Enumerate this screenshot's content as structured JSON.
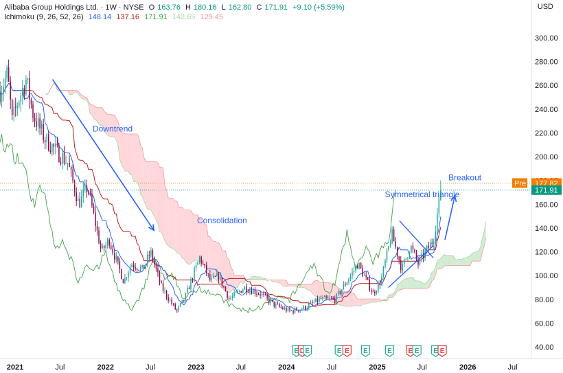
{
  "header": {
    "symbol_line": "Alibaba Group Holdings Ltd. · 1W · NYSE",
    "o_label": "O",
    "o": "163.76",
    "h_label": "H",
    "h": "180.16",
    "l_label": "L",
    "l": "162.80",
    "c_label": "C",
    "c": "171.91",
    "change": "+9.10 (+5.59%)",
    "indicator": "Ichimoku (9, 26, 52, 26)",
    "ichimoku_values": [
      "148.14",
      "137.16",
      "171.91",
      "142.65",
      "129.45"
    ],
    "ichimoku_colors": [
      "#2962ff",
      "#b71c1c",
      "#43a047",
      "#a5d6a7",
      "#ef9a9a"
    ],
    "currency": "USD"
  },
  "badges": {
    "pre_label": "Pre",
    "pre_value": "177.82",
    "last_value": "171.91"
  },
  "colors": {
    "up": "#26a69a",
    "down": "#880e4f",
    "annotation": "#2962ff",
    "pre": "#f57c00",
    "last": "#089981",
    "cloud_bull": "#c8e6c9",
    "cloud_bear": "#ffcdd2"
  },
  "chart_data": {
    "type": "candlestick",
    "title": "Alibaba Group Holdings Ltd. · 1W · NYSE",
    "indicator": "Ichimoku (9, 26, 52, 26)",
    "y_ticks": [
      "300.00",
      "280.00",
      "260.00",
      "240.00",
      "220.00",
      "200.00",
      "180.00",
      "160.00",
      "140.00",
      "120.00",
      "100.00",
      "80.00",
      "60.00",
      "40.00"
    ],
    "y_tick_values": [
      300,
      280,
      260,
      240,
      220,
      200,
      180,
      160,
      140,
      120,
      100,
      80,
      60,
      40
    ],
    "ylim": [
      32,
      311
    ],
    "x_ticks": [
      "2021",
      "Jul",
      "2022",
      "Jul",
      "2023",
      "Jul",
      "2024",
      "Jul",
      "2025",
      "Jul",
      "2026",
      "Jul"
    ],
    "x_tick_bold": [
      true,
      false,
      true,
      false,
      true,
      false,
      true,
      false,
      true,
      false,
      true,
      false
    ],
    "xlim": [
      "2020-11-01",
      "2026-09-15"
    ],
    "price_path": [
      [
        "2020-11-01",
        255
      ],
      [
        "2020-12-01",
        270
      ],
      [
        "2020-12-20",
        230
      ],
      [
        "2021-01-10",
        245
      ],
      [
        "2021-02-15",
        265
      ],
      [
        "2021-03-15",
        235
      ],
      [
        "2021-05-01",
        215
      ],
      [
        "2021-06-15",
        205
      ],
      [
        "2021-08-01",
        195
      ],
      [
        "2021-09-15",
        160
      ],
      [
        "2021-10-20",
        175
      ],
      [
        "2021-12-15",
        120
      ],
      [
        "2022-01-15",
        130
      ],
      [
        "2022-03-15",
        95
      ],
      [
        "2022-04-15",
        110
      ],
      [
        "2022-06-01",
        105
      ],
      [
        "2022-07-01",
        120
      ],
      [
        "2022-08-15",
        90
      ],
      [
        "2022-10-15",
        70
      ],
      [
        "2022-11-15",
        80
      ],
      [
        "2023-01-15",
        115
      ],
      [
        "2023-03-01",
        95
      ],
      [
        "2023-04-01",
        100
      ],
      [
        "2023-05-15",
        80
      ],
      [
        "2023-07-15",
        90
      ],
      [
        "2023-09-15",
        85
      ],
      [
        "2023-11-15",
        75
      ],
      [
        "2024-01-15",
        70
      ],
      [
        "2024-03-15",
        73
      ],
      [
        "2024-05-15",
        80
      ],
      [
        "2024-07-15",
        80
      ],
      [
        "2024-09-15",
        100
      ],
      [
        "2024-10-15",
        110
      ],
      [
        "2024-12-15",
        85
      ],
      [
        "2025-01-15",
        95
      ],
      [
        "2025-03-01",
        135
      ],
      [
        "2025-04-10",
        105
      ],
      [
        "2025-05-15",
        125
      ],
      [
        "2025-06-15",
        110
      ],
      [
        "2025-07-15",
        120
      ],
      [
        "2025-08-15",
        130
      ],
      [
        "2025-09-15",
        171.91
      ]
    ],
    "last_close": 171.91,
    "pre_market": 177.82,
    "annotations": [
      {
        "text": "Downtrend",
        "x": "2021-11-10",
        "y": 221
      },
      {
        "text": "Consolidation",
        "x": "2023-01-05",
        "y": 144
      },
      {
        "text": "Symmetrical triangle",
        "x": "2025-02-01",
        "y": 166
      },
      {
        "text": "Breakout",
        "x": "2025-10-15",
        "y": 180
      }
    ],
    "events": [
      "E",
      "D",
      "E",
      "E",
      "E",
      "E",
      "E",
      "E",
      "E",
      "E",
      "E"
    ]
  }
}
